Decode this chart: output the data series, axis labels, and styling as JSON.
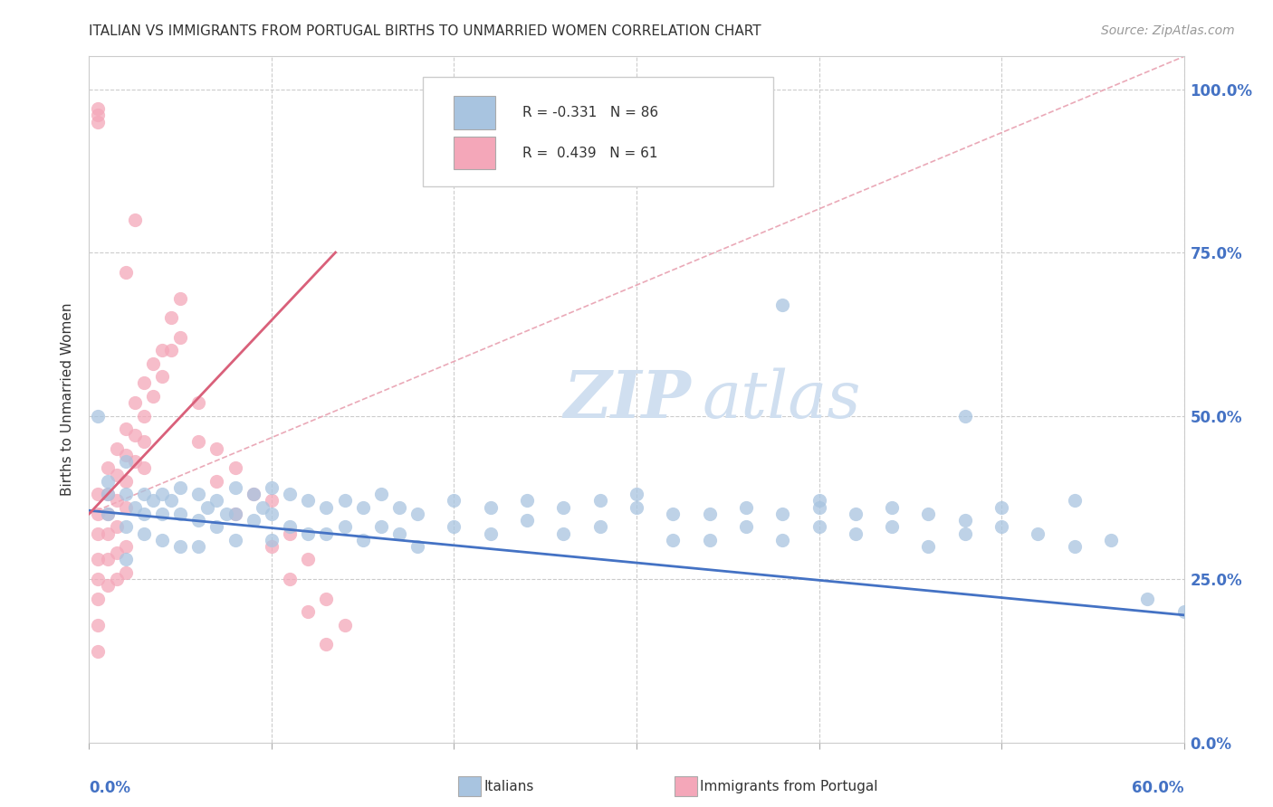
{
  "title": "ITALIAN VS IMMIGRANTS FROM PORTUGAL BIRTHS TO UNMARRIED WOMEN CORRELATION CHART",
  "source": "Source: ZipAtlas.com",
  "ylabel": "Births to Unmarried Women",
  "right_yticks": [
    "0.0%",
    "25.0%",
    "50.0%",
    "75.0%",
    "100.0%"
  ],
  "right_ytick_vals": [
    0.0,
    0.25,
    0.5,
    0.75,
    1.0
  ],
  "blue_color": "#a8c4e0",
  "pink_color": "#f4a7b9",
  "blue_line_color": "#4472c4",
  "pink_line_color": "#d9607a",
  "dash_line_color": "#e8a0b0",
  "watermark_color": "#d0dff0",
  "xmin": 0.0,
  "xmax": 0.6,
  "ymin": 0.0,
  "ymax": 1.05,
  "blue_scatter": [
    [
      0.005,
      0.5
    ],
    [
      0.01,
      0.38
    ],
    [
      0.01,
      0.35
    ],
    [
      0.01,
      0.4
    ],
    [
      0.02,
      0.43
    ],
    [
      0.02,
      0.38
    ],
    [
      0.02,
      0.33
    ],
    [
      0.02,
      0.28
    ],
    [
      0.025,
      0.36
    ],
    [
      0.03,
      0.38
    ],
    [
      0.03,
      0.35
    ],
    [
      0.03,
      0.32
    ],
    [
      0.035,
      0.37
    ],
    [
      0.04,
      0.38
    ],
    [
      0.04,
      0.35
    ],
    [
      0.04,
      0.31
    ],
    [
      0.045,
      0.37
    ],
    [
      0.05,
      0.39
    ],
    [
      0.05,
      0.35
    ],
    [
      0.05,
      0.3
    ],
    [
      0.06,
      0.38
    ],
    [
      0.06,
      0.34
    ],
    [
      0.06,
      0.3
    ],
    [
      0.065,
      0.36
    ],
    [
      0.07,
      0.37
    ],
    [
      0.07,
      0.33
    ],
    [
      0.075,
      0.35
    ],
    [
      0.08,
      0.39
    ],
    [
      0.08,
      0.35
    ],
    [
      0.08,
      0.31
    ],
    [
      0.09,
      0.38
    ],
    [
      0.09,
      0.34
    ],
    [
      0.095,
      0.36
    ],
    [
      0.1,
      0.39
    ],
    [
      0.1,
      0.35
    ],
    [
      0.1,
      0.31
    ],
    [
      0.11,
      0.38
    ],
    [
      0.11,
      0.33
    ],
    [
      0.12,
      0.37
    ],
    [
      0.12,
      0.32
    ],
    [
      0.13,
      0.36
    ],
    [
      0.13,
      0.32
    ],
    [
      0.14,
      0.37
    ],
    [
      0.14,
      0.33
    ],
    [
      0.15,
      0.36
    ],
    [
      0.15,
      0.31
    ],
    [
      0.16,
      0.38
    ],
    [
      0.16,
      0.33
    ],
    [
      0.17,
      0.36
    ],
    [
      0.17,
      0.32
    ],
    [
      0.18,
      0.35
    ],
    [
      0.18,
      0.3
    ],
    [
      0.2,
      0.37
    ],
    [
      0.2,
      0.33
    ],
    [
      0.22,
      0.36
    ],
    [
      0.22,
      0.32
    ],
    [
      0.24,
      0.37
    ],
    [
      0.24,
      0.34
    ],
    [
      0.26,
      0.36
    ],
    [
      0.26,
      0.32
    ],
    [
      0.28,
      0.37
    ],
    [
      0.28,
      0.33
    ],
    [
      0.3,
      0.36
    ],
    [
      0.3,
      0.38
    ],
    [
      0.32,
      0.35
    ],
    [
      0.32,
      0.31
    ],
    [
      0.34,
      0.35
    ],
    [
      0.34,
      0.31
    ],
    [
      0.36,
      0.36
    ],
    [
      0.36,
      0.33
    ],
    [
      0.38,
      0.35
    ],
    [
      0.38,
      0.31
    ],
    [
      0.4,
      0.36
    ],
    [
      0.4,
      0.33
    ],
    [
      0.4,
      0.37
    ],
    [
      0.42,
      0.35
    ],
    [
      0.42,
      0.32
    ],
    [
      0.44,
      0.36
    ],
    [
      0.44,
      0.33
    ],
    [
      0.46,
      0.35
    ],
    [
      0.46,
      0.3
    ],
    [
      0.48,
      0.34
    ],
    [
      0.48,
      0.32
    ],
    [
      0.5,
      0.33
    ],
    [
      0.5,
      0.36
    ],
    [
      0.52,
      0.32
    ],
    [
      0.54,
      0.37
    ],
    [
      0.54,
      0.3
    ],
    [
      0.56,
      0.31
    ],
    [
      0.38,
      0.67
    ],
    [
      0.48,
      0.5
    ],
    [
      0.6,
      0.2
    ],
    [
      0.58,
      0.22
    ]
  ],
  "pink_scatter": [
    [
      0.005,
      0.38
    ],
    [
      0.005,
      0.35
    ],
    [
      0.005,
      0.32
    ],
    [
      0.005,
      0.28
    ],
    [
      0.005,
      0.25
    ],
    [
      0.005,
      0.22
    ],
    [
      0.005,
      0.18
    ],
    [
      0.005,
      0.14
    ],
    [
      0.01,
      0.42
    ],
    [
      0.01,
      0.38
    ],
    [
      0.01,
      0.35
    ],
    [
      0.01,
      0.32
    ],
    [
      0.01,
      0.28
    ],
    [
      0.01,
      0.24
    ],
    [
      0.015,
      0.45
    ],
    [
      0.015,
      0.41
    ],
    [
      0.015,
      0.37
    ],
    [
      0.015,
      0.33
    ],
    [
      0.015,
      0.29
    ],
    [
      0.015,
      0.25
    ],
    [
      0.02,
      0.48
    ],
    [
      0.02,
      0.44
    ],
    [
      0.02,
      0.4
    ],
    [
      0.02,
      0.36
    ],
    [
      0.02,
      0.3
    ],
    [
      0.02,
      0.26
    ],
    [
      0.025,
      0.52
    ],
    [
      0.025,
      0.47
    ],
    [
      0.025,
      0.43
    ],
    [
      0.03,
      0.55
    ],
    [
      0.03,
      0.5
    ],
    [
      0.03,
      0.46
    ],
    [
      0.03,
      0.42
    ],
    [
      0.035,
      0.58
    ],
    [
      0.035,
      0.53
    ],
    [
      0.04,
      0.6
    ],
    [
      0.04,
      0.56
    ],
    [
      0.045,
      0.65
    ],
    [
      0.045,
      0.6
    ],
    [
      0.05,
      0.68
    ],
    [
      0.05,
      0.62
    ],
    [
      0.06,
      0.52
    ],
    [
      0.06,
      0.46
    ],
    [
      0.07,
      0.45
    ],
    [
      0.07,
      0.4
    ],
    [
      0.08,
      0.42
    ],
    [
      0.08,
      0.35
    ],
    [
      0.09,
      0.38
    ],
    [
      0.1,
      0.37
    ],
    [
      0.1,
      0.3
    ],
    [
      0.11,
      0.32
    ],
    [
      0.11,
      0.25
    ],
    [
      0.12,
      0.28
    ],
    [
      0.12,
      0.2
    ],
    [
      0.13,
      0.22
    ],
    [
      0.13,
      0.15
    ],
    [
      0.14,
      0.18
    ],
    [
      0.02,
      0.72
    ],
    [
      0.025,
      0.8
    ],
    [
      0.005,
      0.95
    ],
    [
      0.005,
      0.96
    ],
    [
      0.005,
      0.97
    ]
  ]
}
